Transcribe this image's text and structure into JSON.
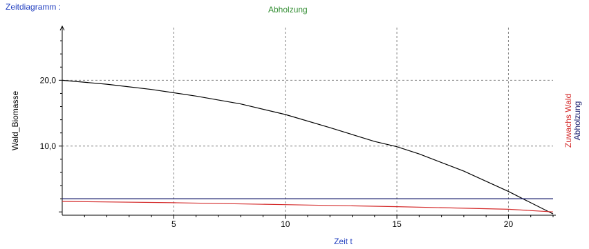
{
  "header": {
    "view_label": "Zeitdiagramm :",
    "title": "Abholzung"
  },
  "colors": {
    "header": "#1f3dbf",
    "title": "#2e8b2e",
    "axis": "#000000",
    "grid": "#808080",
    "wald_biomasse": "#000000",
    "abholzung": "#1a1f6e",
    "zuwachs_wald": "#d42a2a"
  },
  "chart_data": {
    "type": "line",
    "title": "Abholzung",
    "xlabel": "Zeit t",
    "ylabel_left": "Wald_Biomasse",
    "ylabels_right": [
      "Zuwachs Wald",
      "Abholzung"
    ],
    "xlim": [
      0,
      22
    ],
    "ylim": [
      -0.5,
      28
    ],
    "x_ticks": [
      5,
      10,
      15,
      20
    ],
    "y_ticks": [
      10.0,
      20.0
    ],
    "x_tick_labels": [
      "5",
      "10",
      "15",
      "20"
    ],
    "y_tick_labels": [
      "10,0",
      "20,0"
    ],
    "grid": true,
    "series": [
      {
        "name": "Wald_Biomasse",
        "color": "#000000",
        "x": [
          0,
          2,
          4,
          6,
          8,
          10,
          12,
          14,
          15,
          16,
          18,
          20,
          21,
          22
        ],
        "y": [
          20.0,
          19.4,
          18.6,
          17.6,
          16.4,
          14.8,
          12.8,
          10.7,
          9.9,
          8.8,
          6.2,
          3.1,
          1.4,
          -0.3
        ]
      },
      {
        "name": "Abholzung",
        "color": "#1a1f6e",
        "x": [
          0,
          22
        ],
        "y": [
          2.0,
          2.0
        ]
      },
      {
        "name": "Zuwachs Wald",
        "color": "#d42a2a",
        "x": [
          0,
          5,
          10,
          15,
          20,
          22
        ],
        "y": [
          1.6,
          1.4,
          1.1,
          0.8,
          0.4,
          0.0
        ]
      }
    ]
  }
}
